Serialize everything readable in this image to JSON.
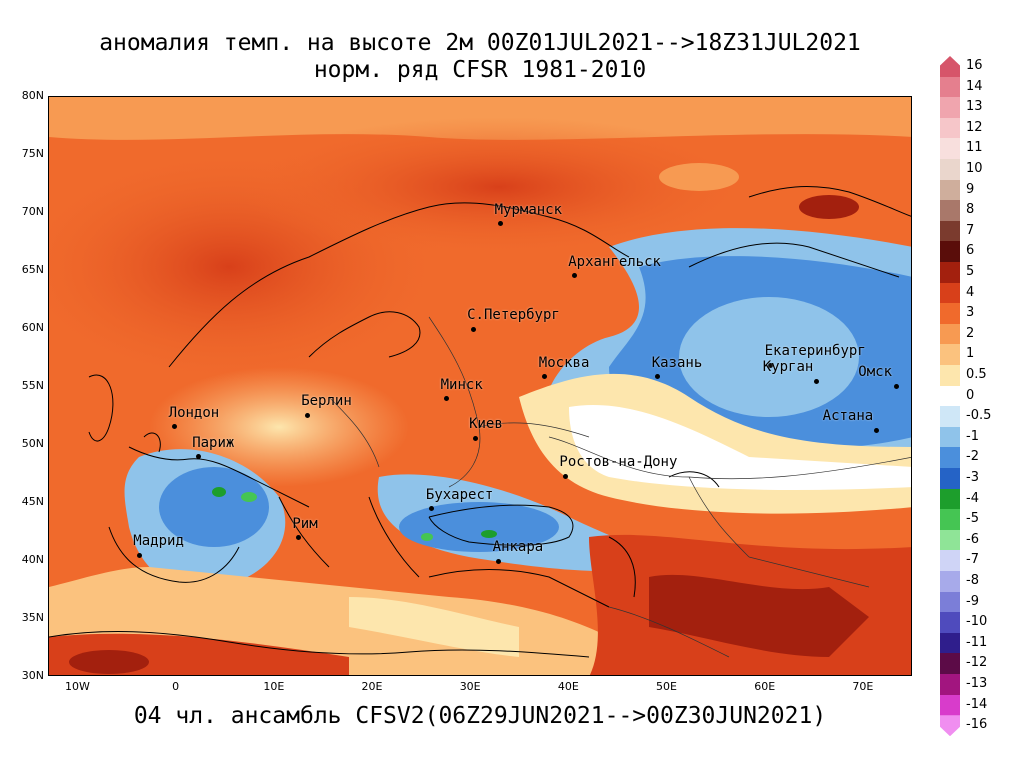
{
  "title_line1": "аномалия темп. на высоте 2м 00Z01JUL2021-->18Z31JUL2021",
  "title_line2": "норм. ряд CFSR 1981-2010",
  "footer": "04 чл. ансамбль CFSV2(06Z29JUN2021-->00Z30JUN2021)",
  "map": {
    "lat_range": [
      30,
      80
    ],
    "lon_range": [
      -13,
      75
    ],
    "lat_ticks": [
      "80N",
      "75N",
      "70N",
      "65N",
      "60N",
      "55N",
      "50N",
      "45N",
      "40N",
      "35N",
      "30N"
    ],
    "lat_values": [
      80,
      75,
      70,
      65,
      60,
      55,
      50,
      45,
      40,
      35,
      30
    ],
    "lon_ticks": [
      "10W",
      "0",
      "10E",
      "20E",
      "30E",
      "40E",
      "50E",
      "60E",
      "70E"
    ],
    "lon_values": [
      -10,
      0,
      10,
      20,
      30,
      40,
      50,
      60,
      70
    ],
    "cities": [
      {
        "name": "Мурманск",
        "lat": 69.0,
        "lon": 33.1
      },
      {
        "name": "Архангельск",
        "lat": 64.5,
        "lon": 40.6
      },
      {
        "name": "С.Петербург",
        "lat": 59.9,
        "lon": 30.3
      },
      {
        "name": "Москва",
        "lat": 55.8,
        "lon": 37.6
      },
      {
        "name": "Казань",
        "lat": 55.8,
        "lon": 49.1
      },
      {
        "name": "Екатеринбург",
        "lat": 56.8,
        "lon": 60.6
      },
      {
        "name": "Курган",
        "lat": 55.4,
        "lon": 65.3
      },
      {
        "name": "Омск",
        "lat": 55.0,
        "lon": 73.4
      },
      {
        "name": "Астана",
        "lat": 51.2,
        "lon": 71.4
      },
      {
        "name": "Минск",
        "lat": 53.9,
        "lon": 27.6
      },
      {
        "name": "Киев",
        "lat": 50.5,
        "lon": 30.5
      },
      {
        "name": "Берлин",
        "lat": 52.5,
        "lon": 13.4
      },
      {
        "name": "Лондон",
        "lat": 51.5,
        "lon": -0.1
      },
      {
        "name": "Париж",
        "lat": 48.9,
        "lon": 2.3
      },
      {
        "name": "Ростов-на-Дону",
        "lat": 47.2,
        "lon": 39.7
      },
      {
        "name": "Бухарест",
        "lat": 44.4,
        "lon": 26.1
      },
      {
        "name": "Рим",
        "lat": 41.9,
        "lon": 12.5
      },
      {
        "name": "Мадрид",
        "lat": 40.4,
        "lon": -3.7
      },
      {
        "name": "Анкара",
        "lat": 39.9,
        "lon": 32.9
      }
    ]
  },
  "colorbar": {
    "labels": [
      "16",
      "14",
      "13",
      "12",
      "11",
      "10",
      "9",
      "8",
      "7",
      "6",
      "5",
      "4",
      "3",
      "2",
      "1",
      "0.5",
      "0",
      "-0.5",
      "-1",
      "-2",
      "-3",
      "-4",
      "-5",
      "-6",
      "-7",
      "-8",
      "-9",
      "-10",
      "-11",
      "-12",
      "-13",
      "-14",
      "-16"
    ],
    "colors": [
      "#d6556a",
      "#e57f8e",
      "#f0a5ae",
      "#f6c6c9",
      "#f8dfdd",
      "#ead6cc",
      "#cfae9c",
      "#a9786a",
      "#7b3b2e",
      "#5a0d0a",
      "#a3200e",
      "#d8401a",
      "#f06a2c",
      "#f79a52",
      "#fbc27e",
      "#fde6ad",
      "#ffffff",
      "#cfe7f7",
      "#8fc3ea",
      "#4b8fdc",
      "#2563c6",
      "#1d9e2c",
      "#45c553",
      "#8fe497",
      "#cfd4f6",
      "#a7aaea",
      "#7b7ed8",
      "#4f4bbd",
      "#2f1e8c",
      "#5c0b47",
      "#a2157f",
      "#d83ccb",
      "#f08ef0"
    ]
  }
}
